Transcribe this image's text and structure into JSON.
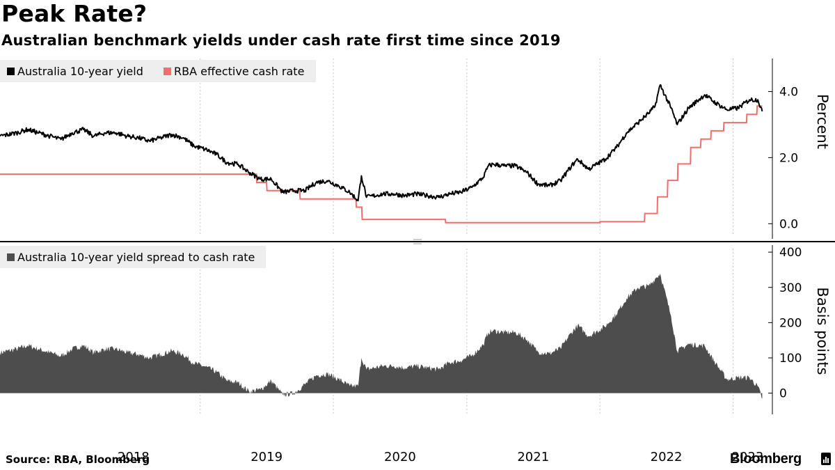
{
  "header": {
    "title": "Peak Rate?",
    "subtitle": "Australian benchmark yields under cash rate first time since 2019"
  },
  "footer": {
    "source": "Source: RBA, Bloomberg",
    "brand": "Bloomberg"
  },
  "colors": {
    "yield": "#000000",
    "cash_rate": "#f26d6d",
    "spread": "#4d4d4d",
    "legend_bg": "#eeeeee",
    "gridline": "#c8c8c8"
  },
  "chart_data": [
    {
      "type": "line",
      "ylabel": "Percent",
      "ylim": [
        -0.5,
        5.0
      ],
      "yticks": [
        0,
        2,
        4
      ],
      "ytick_labels": [
        "0.0",
        "2.0",
        "4.0"
      ],
      "x_ticks": [
        "2018",
        "2019",
        "2020",
        "2021",
        "2022",
        "2023"
      ],
      "grid": "vertical dashed at year boundaries",
      "legend_placement": "top-left",
      "series": [
        {
          "name": "Australia 10-year yield",
          "color": "#000000",
          "points": [
            [
              "2017-07-01",
              2.65
            ],
            [
              "2017-08-15",
              2.75
            ],
            [
              "2017-09-15",
              2.85
            ],
            [
              "2017-10-15",
              2.75
            ],
            [
              "2017-11-15",
              2.65
            ],
            [
              "2017-12-15",
              2.55
            ],
            [
              "2018-01-15",
              2.75
            ],
            [
              "2018-02-15",
              2.85
            ],
            [
              "2018-03-15",
              2.65
            ],
            [
              "2018-04-15",
              2.75
            ],
            [
              "2018-05-15",
              2.75
            ],
            [
              "2018-06-15",
              2.65
            ],
            [
              "2018-07-15",
              2.6
            ],
            [
              "2018-08-15",
              2.5
            ],
            [
              "2018-09-15",
              2.6
            ],
            [
              "2018-10-15",
              2.7
            ],
            [
              "2018-11-15",
              2.6
            ],
            [
              "2018-12-15",
              2.35
            ],
            [
              "2019-01-15",
              2.25
            ],
            [
              "2019-02-15",
              2.1
            ],
            [
              "2019-03-15",
              1.85
            ],
            [
              "2019-04-15",
              1.8
            ],
            [
              "2019-05-15",
              1.55
            ],
            [
              "2019-06-15",
              1.35
            ],
            [
              "2019-07-15",
              1.35
            ],
            [
              "2019-08-15",
              0.95
            ],
            [
              "2019-09-15",
              1.0
            ],
            [
              "2019-10-15",
              1.0
            ],
            [
              "2019-11-15",
              1.25
            ],
            [
              "2019-12-15",
              1.3
            ],
            [
              "2020-01-15",
              1.15
            ],
            [
              "2020-02-15",
              0.95
            ],
            [
              "2020-03-09",
              0.7
            ],
            [
              "2020-03-18",
              1.45
            ],
            [
              "2020-04-01",
              0.8
            ],
            [
              "2020-05-15",
              0.9
            ],
            [
              "2020-06-15",
              0.9
            ],
            [
              "2020-07-15",
              0.85
            ],
            [
              "2020-08-15",
              0.9
            ],
            [
              "2020-09-15",
              0.85
            ],
            [
              "2020-10-15",
              0.8
            ],
            [
              "2020-11-15",
              0.9
            ],
            [
              "2020-12-15",
              0.95
            ],
            [
              "2021-01-15",
              1.1
            ],
            [
              "2021-02-15",
              1.4
            ],
            [
              "2021-03-01",
              1.75
            ],
            [
              "2021-03-15",
              1.8
            ],
            [
              "2021-04-15",
              1.75
            ],
            [
              "2021-05-15",
              1.75
            ],
            [
              "2021-06-15",
              1.55
            ],
            [
              "2021-07-15",
              1.2
            ],
            [
              "2021-08-15",
              1.15
            ],
            [
              "2021-09-15",
              1.3
            ],
            [
              "2021-10-15",
              1.75
            ],
            [
              "2021-11-01",
              1.95
            ],
            [
              "2021-12-01",
              1.65
            ],
            [
              "2022-01-15",
              1.95
            ],
            [
              "2022-02-15",
              2.3
            ],
            [
              "2022-03-15",
              2.75
            ],
            [
              "2022-04-15",
              3.05
            ],
            [
              "2022-05-15",
              3.35
            ],
            [
              "2022-06-01",
              3.55
            ],
            [
              "2022-06-15",
              4.2
            ],
            [
              "2022-07-15",
              3.5
            ],
            [
              "2022-08-01",
              3.0
            ],
            [
              "2022-09-01",
              3.5
            ],
            [
              "2022-10-15",
              3.9
            ],
            [
              "2022-11-15",
              3.65
            ],
            [
              "2022-12-15",
              3.45
            ],
            [
              "2023-01-15",
              3.5
            ],
            [
              "2023-02-15",
              3.75
            ],
            [
              "2023-03-10",
              3.75
            ],
            [
              "2023-03-22",
              3.4
            ]
          ]
        },
        {
          "name": "RBA effective cash rate",
          "color": "#f26d6d",
          "points": [
            [
              "2017-07-01",
              1.5
            ],
            [
              "2019-06-04",
              1.5
            ],
            [
              "2019-06-05",
              1.25
            ],
            [
              "2019-07-02",
              1.25
            ],
            [
              "2019-07-03",
              1.0
            ],
            [
              "2019-10-01",
              1.0
            ],
            [
              "2019-10-02",
              0.75
            ],
            [
              "2020-03-03",
              0.75
            ],
            [
              "2020-03-04",
              0.5
            ],
            [
              "2020-03-19",
              0.5
            ],
            [
              "2020-03-20",
              0.13
            ],
            [
              "2020-11-03",
              0.13
            ],
            [
              "2020-11-04",
              0.03
            ],
            [
              "2022-01-01",
              0.03
            ],
            [
              "2022-01-01",
              0.06
            ],
            [
              "2022-05-03",
              0.06
            ],
            [
              "2022-05-04",
              0.31
            ],
            [
              "2022-06-07",
              0.31
            ],
            [
              "2022-06-08",
              0.81
            ],
            [
              "2022-07-05",
              0.81
            ],
            [
              "2022-07-06",
              1.31
            ],
            [
              "2022-08-02",
              1.31
            ],
            [
              "2022-08-03",
              1.81
            ],
            [
              "2022-09-06",
              1.81
            ],
            [
              "2022-09-07",
              2.31
            ],
            [
              "2022-10-04",
              2.31
            ],
            [
              "2022-10-05",
              2.56
            ],
            [
              "2022-11-01",
              2.56
            ],
            [
              "2022-11-02",
              2.81
            ],
            [
              "2022-12-06",
              2.81
            ],
            [
              "2022-12-07",
              3.06
            ],
            [
              "2023-02-07",
              3.06
            ],
            [
              "2023-02-08",
              3.31
            ],
            [
              "2023-03-07",
              3.31
            ],
            [
              "2023-03-08",
              3.56
            ],
            [
              "2023-03-22",
              3.56
            ]
          ]
        }
      ]
    },
    {
      "type": "area",
      "ylabel": "Basis points",
      "ylim": [
        -60,
        420
      ],
      "yticks": [
        0,
        100,
        200,
        300,
        400
      ],
      "ytick_labels": [
        "0",
        "100",
        "200",
        "300",
        "400"
      ],
      "legend_placement": "top-left",
      "series": [
        {
          "name": "Australia 10-year yield spread to cash rate",
          "color": "#4d4d4d",
          "points": [
            [
              "2017-07-01",
              115
            ],
            [
              "2017-08-15",
              125
            ],
            [
              "2017-09-15",
              135
            ],
            [
              "2017-10-15",
              125
            ],
            [
              "2017-11-15",
              115
            ],
            [
              "2017-12-15",
              105
            ],
            [
              "2018-01-15",
              125
            ],
            [
              "2018-02-15",
              135
            ],
            [
              "2018-03-15",
              115
            ],
            [
              "2018-04-15",
              125
            ],
            [
              "2018-05-15",
              125
            ],
            [
              "2018-06-15",
              115
            ],
            [
              "2018-07-15",
              110
            ],
            [
              "2018-08-15",
              100
            ],
            [
              "2018-09-15",
              110
            ],
            [
              "2018-10-15",
              120
            ],
            [
              "2018-11-15",
              110
            ],
            [
              "2018-12-15",
              85
            ],
            [
              "2019-01-15",
              75
            ],
            [
              "2019-02-15",
              60
            ],
            [
              "2019-03-15",
              35
            ],
            [
              "2019-04-15",
              30
            ],
            [
              "2019-05-15",
              5
            ],
            [
              "2019-06-15",
              10
            ],
            [
              "2019-07-15",
              35
            ],
            [
              "2019-08-15",
              -5
            ],
            [
              "2019-09-15",
              0
            ],
            [
              "2019-10-15",
              25
            ],
            [
              "2019-11-15",
              50
            ],
            [
              "2019-12-15",
              55
            ],
            [
              "2020-01-15",
              40
            ],
            [
              "2020-02-15",
              20
            ],
            [
              "2020-03-09",
              20
            ],
            [
              "2020-03-18",
              100
            ],
            [
              "2020-04-01",
              67
            ],
            [
              "2020-05-15",
              77
            ],
            [
              "2020-06-15",
              77
            ],
            [
              "2020-07-15",
              72
            ],
            [
              "2020-08-15",
              77
            ],
            [
              "2020-09-15",
              72
            ],
            [
              "2020-10-15",
              67
            ],
            [
              "2020-11-15",
              87
            ],
            [
              "2020-12-15",
              92
            ],
            [
              "2021-01-15",
              107
            ],
            [
              "2021-02-15",
              137
            ],
            [
              "2021-03-01",
              172
            ],
            [
              "2021-03-15",
              177
            ],
            [
              "2021-04-15",
              172
            ],
            [
              "2021-05-15",
              172
            ],
            [
              "2021-06-15",
              152
            ],
            [
              "2021-07-15",
              117
            ],
            [
              "2021-08-15",
              112
            ],
            [
              "2021-09-15",
              127
            ],
            [
              "2021-10-15",
              172
            ],
            [
              "2021-11-01",
              192
            ],
            [
              "2021-12-01",
              162
            ],
            [
              "2022-01-15",
              189
            ],
            [
              "2022-02-15",
              224
            ],
            [
              "2022-03-15",
              269
            ],
            [
              "2022-04-15",
              299
            ],
            [
              "2022-05-15",
              304
            ],
            [
              "2022-06-01",
              324
            ],
            [
              "2022-06-15",
              339
            ],
            [
              "2022-07-15",
              219
            ],
            [
              "2022-08-01",
              119
            ],
            [
              "2022-09-01",
              139
            ],
            [
              "2022-10-15",
              134
            ],
            [
              "2022-11-15",
              84
            ],
            [
              "2022-12-15",
              39
            ],
            [
              "2023-01-15",
              44
            ],
            [
              "2023-02-15",
              44
            ],
            [
              "2023-03-10",
              19
            ],
            [
              "2023-03-22",
              -16
            ]
          ]
        }
      ]
    }
  ]
}
